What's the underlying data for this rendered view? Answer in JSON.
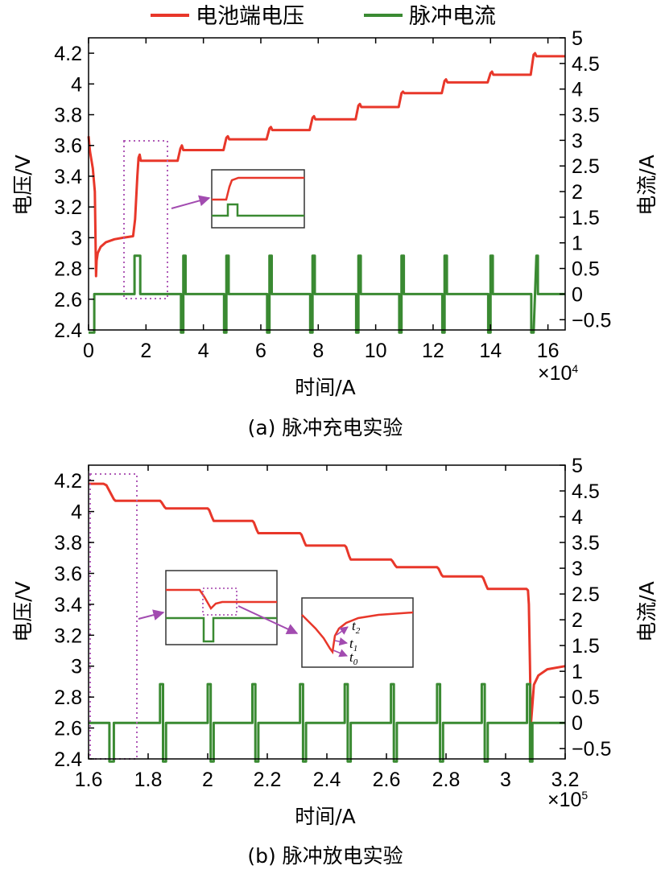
{
  "colors": {
    "voltage": "#e8372a",
    "current": "#3a8a32",
    "dotted_box": "#b05cb8",
    "arrow": "#a24bb0",
    "axis": "#000000"
  },
  "legend": [
    {
      "label": "电池端电压",
      "color": "#e8372a"
    },
    {
      "label": "脉冲电流",
      "color": "#3a8a32"
    }
  ],
  "chart_data": [
    {
      "type": "line",
      "caption": "(a) 脉冲充电实验",
      "xlabel": "时间/A",
      "x_multiplier": "×10",
      "x_multiplier_exp": "4",
      "ylabel_left": "电压/V",
      "ylabel_right": "电流/A",
      "xlim": [
        0,
        16.6
      ],
      "ylim_left": [
        2.4,
        4.3
      ],
      "ylim_right": [
        -0.7,
        5
      ],
      "x_ticks": [
        0,
        2,
        4,
        6,
        8,
        10,
        12,
        14,
        16
      ],
      "x_tick_labels": [
        "0",
        "2",
        "4",
        "6",
        "8",
        "10",
        "12",
        "14",
        "16"
      ],
      "y_left_ticks": [
        2.4,
        2.6,
        2.8,
        3,
        3.2,
        3.4,
        3.6,
        3.8,
        4,
        4.2
      ],
      "y_left_tick_labels": [
        "2.4",
        "2.6",
        "2.8",
        "3",
        "3.2",
        "3.4",
        "3.6",
        "3.8",
        "4",
        "4.2"
      ],
      "y_right_ticks": [
        -0.5,
        0,
        0.5,
        1,
        1.5,
        2,
        2.5,
        3,
        3.5,
        4,
        4.5,
        5
      ],
      "y_right_tick_labels": [
        "−0.5",
        "0",
        "0.5",
        "1",
        "1.5",
        "2",
        "2.5",
        "3",
        "3.5",
        "4",
        "4.5",
        "5"
      ],
      "series": [
        {
          "name": "电池端电压",
          "axis": "left",
          "x": [
            0,
            0.05,
            0.15,
            0.22,
            0.26,
            0.28,
            0.32,
            0.42,
            0.6,
            0.9,
            1.2,
            1.55,
            1.62,
            1.7,
            1.74,
            1.78,
            1.82,
            2.0,
            3.1,
            3.2,
            3.25,
            3.3,
            4.7,
            4.8,
            4.85,
            4.9,
            6.2,
            6.3,
            6.35,
            6.4,
            7.7,
            7.8,
            7.85,
            7.9,
            9.3,
            9.4,
            9.45,
            9.5,
            10.8,
            10.9,
            10.95,
            11.0,
            12.3,
            12.4,
            12.45,
            12.5,
            13.9,
            14.0,
            14.05,
            14.1,
            15.4,
            15.5,
            15.55,
            15.6,
            16.6
          ],
          "y": [
            3.66,
            3.56,
            3.45,
            3.3,
            2.75,
            2.85,
            2.9,
            2.94,
            2.97,
            2.99,
            3.0,
            3.01,
            3.12,
            3.4,
            3.52,
            3.54,
            3.5,
            3.5,
            3.5,
            3.58,
            3.6,
            3.57,
            3.57,
            3.65,
            3.66,
            3.64,
            3.64,
            3.71,
            3.72,
            3.7,
            3.7,
            3.78,
            3.79,
            3.77,
            3.77,
            3.86,
            3.87,
            3.85,
            3.85,
            3.94,
            3.95,
            3.94,
            3.94,
            4.02,
            4.03,
            4.01,
            4.01,
            4.07,
            4.08,
            4.06,
            4.06,
            4.19,
            4.2,
            4.18,
            4.18
          ]
        },
        {
          "name": "脉冲电流",
          "axis": "right",
          "x": [
            0,
            0.2,
            0.2,
            0.22,
            0.22,
            1.6,
            1.6,
            1.8,
            1.8,
            3.22,
            3.22,
            3.3,
            3.3,
            3.38,
            3.38,
            4.72,
            4.72,
            4.8,
            4.8,
            4.88,
            4.88,
            6.22,
            6.22,
            6.3,
            6.3,
            6.38,
            6.38,
            7.72,
            7.72,
            7.8,
            7.8,
            7.88,
            7.88,
            9.32,
            9.32,
            9.4,
            9.4,
            9.48,
            9.48,
            10.82,
            10.82,
            10.9,
            10.9,
            10.98,
            10.98,
            12.32,
            12.32,
            12.4,
            12.4,
            12.48,
            12.48,
            13.92,
            13.92,
            14.0,
            14.0,
            14.08,
            14.08,
            15.42,
            15.42,
            15.5,
            15.6,
            15.65,
            15.65,
            16.6
          ],
          "y": [
            -0.75,
            -0.75,
            0,
            0,
            0,
            0,
            0.75,
            0.75,
            0,
            0,
            -0.75,
            -0.75,
            0.75,
            0.75,
            0,
            0,
            -0.75,
            -0.75,
            0.75,
            0.75,
            0,
            0,
            -0.75,
            -0.75,
            0.75,
            0.75,
            0,
            0,
            -0.75,
            -0.75,
            0.75,
            0.75,
            0,
            0,
            -0.75,
            -0.75,
            0.75,
            0.75,
            0,
            0,
            -0.75,
            -0.75,
            0.75,
            0.75,
            0,
            0,
            -0.75,
            -0.75,
            0.75,
            0.75,
            0,
            0,
            -0.75,
            -0.75,
            0.75,
            0.75,
            0,
            0,
            -0.75,
            -0.75,
            0.75,
            0.75,
            0,
            0
          ]
        }
      ]
    },
    {
      "type": "line",
      "caption": "(b) 脉冲放电实验",
      "xlabel": "时间/A",
      "x_multiplier": "×10",
      "x_multiplier_exp": "5",
      "ylabel_left": "电压/V",
      "ylabel_right": "电流/A",
      "xlim": [
        1.6,
        3.2
      ],
      "ylim_left": [
        2.4,
        4.3
      ],
      "ylim_right": [
        -0.7,
        5
      ],
      "x_ticks": [
        1.6,
        1.8,
        2,
        2.2,
        2.4,
        2.6,
        2.8,
        3,
        3.2
      ],
      "x_tick_labels": [
        "1.6",
        "1.8",
        "2",
        "2.2",
        "2.4",
        "2.6",
        "2.8",
        "3",
        "3.2"
      ],
      "y_left_ticks": [
        2.4,
        2.6,
        2.8,
        3,
        3.2,
        3.4,
        3.6,
        3.8,
        4,
        4.2
      ],
      "y_left_tick_labels": [
        "2.4",
        "2.6",
        "2.8",
        "3",
        "3.2",
        "3.4",
        "3.6",
        "3.8",
        "4",
        "4.2"
      ],
      "y_right_ticks": [
        -0.5,
        0,
        0.5,
        1,
        1.5,
        2,
        2.5,
        3,
        3.5,
        4,
        4.5,
        5
      ],
      "y_right_tick_labels": [
        "−0.5",
        "0",
        "0.5",
        "1",
        "1.5",
        "2",
        "2.5",
        "3",
        "3.5",
        "4",
        "4.5",
        "5"
      ],
      "series": [
        {
          "name": "电池端电压",
          "axis": "left",
          "x": [
            1.6,
            1.65,
            1.66,
            1.685,
            1.69,
            1.84,
            1.845,
            1.855,
            1.86,
            2.0,
            2.005,
            2.015,
            2.02,
            2.15,
            2.155,
            2.165,
            2.17,
            2.31,
            2.315,
            2.325,
            2.33,
            2.46,
            2.465,
            2.475,
            2.48,
            2.615,
            2.62,
            2.63,
            2.635,
            2.77,
            2.775,
            2.785,
            2.79,
            2.92,
            2.925,
            2.935,
            2.94,
            3.07,
            3.075,
            3.078,
            3.082,
            3.085,
            3.095,
            3.11,
            3.14,
            3.2
          ],
          "y": [
            4.18,
            4.18,
            4.17,
            4.08,
            4.07,
            4.07,
            4.06,
            4.03,
            4.02,
            4.02,
            4.01,
            3.96,
            3.94,
            3.94,
            3.93,
            3.88,
            3.86,
            3.86,
            3.85,
            3.8,
            3.78,
            3.78,
            3.77,
            3.71,
            3.69,
            3.69,
            3.68,
            3.65,
            3.64,
            3.64,
            3.63,
            3.59,
            3.58,
            3.58,
            3.57,
            3.52,
            3.5,
            3.5,
            3.49,
            3.4,
            3.0,
            2.62,
            2.88,
            2.94,
            2.98,
            3.0
          ]
        },
        {
          "name": "脉冲电流",
          "axis": "right",
          "x": [
            1.6,
            1.67,
            1.67,
            1.685,
            1.685,
            1.84,
            1.84,
            1.85,
            1.85,
            1.86,
            1.86,
            2.0,
            2.0,
            2.01,
            2.01,
            2.02,
            2.02,
            2.15,
            2.15,
            2.16,
            2.16,
            2.17,
            2.17,
            2.31,
            2.31,
            2.32,
            2.32,
            2.33,
            2.33,
            2.46,
            2.46,
            2.47,
            2.47,
            2.48,
            2.48,
            2.615,
            2.615,
            2.625,
            2.625,
            2.635,
            2.635,
            2.77,
            2.77,
            2.78,
            2.78,
            2.79,
            2.79,
            2.92,
            2.92,
            2.93,
            2.93,
            2.94,
            2.94,
            3.072,
            3.072,
            3.082,
            3.082,
            3.09,
            3.09,
            3.2
          ],
          "y": [
            0,
            0,
            -0.75,
            -0.75,
            0,
            0,
            0.75,
            0.75,
            -0.75,
            -0.75,
            0,
            0,
            0.75,
            0.75,
            -0.75,
            -0.75,
            0,
            0,
            0.75,
            0.75,
            -0.75,
            -0.75,
            0,
            0,
            0.75,
            0.75,
            -0.75,
            -0.75,
            0,
            0,
            0.75,
            0.75,
            -0.75,
            -0.75,
            0,
            0,
            0.75,
            0.75,
            -0.75,
            -0.75,
            0,
            0,
            0.75,
            0.75,
            -0.75,
            -0.75,
            0,
            0,
            0.75,
            0.75,
            -0.75,
            -0.75,
            0,
            0,
            0.75,
            0.75,
            -0.75,
            -0.75,
            0,
            0
          ]
        }
      ],
      "inset_labels": [
        "t",
        "2",
        "t",
        "1",
        "t",
        "0"
      ]
    }
  ]
}
